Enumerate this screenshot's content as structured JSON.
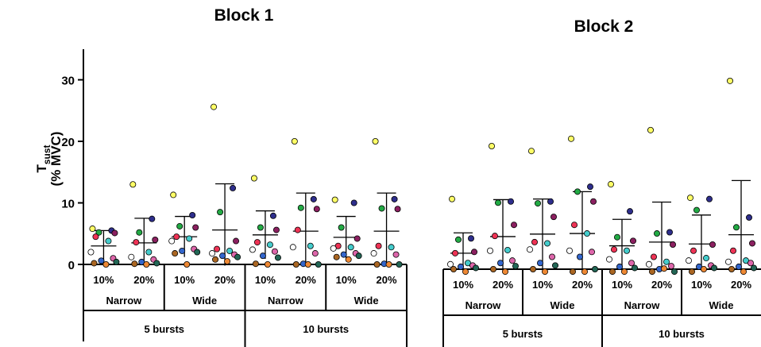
{
  "chart_data": {
    "type": "scatter",
    "ylabel": "T",
    "ylabel_sub": "sust",
    "ylabel_unit": "(% MVC)",
    "ylim": [
      0,
      35
    ],
    "yticks": [
      0,
      10,
      20,
      30
    ],
    "xlabels": {
      "level1": [
        "10%",
        "20%",
        "10%",
        "20%",
        "10%",
        "20%",
        "10%",
        "20%"
      ],
      "level2": [
        "Narrow",
        "Wide",
        "Narrow",
        "Wide"
      ],
      "level3": [
        "5 bursts",
        "10 bursts"
      ]
    },
    "colors": [
      "#ffff66",
      "#2e2e8c",
      "#22aa44",
      "#8b2060",
      "#ee3355",
      "#44cccc",
      "#ffffff",
      "#dd66aa",
      "#3366cc",
      "#226655",
      "#aa6622",
      "#ee8833"
    ],
    "panels": [
      {
        "title": "Block 1",
        "groups": [
          {
            "mean": 3.0,
            "sd": 2.5,
            "values": [
              5.8,
              5.5,
              5.2,
              5.1,
              4.5,
              3.8,
              2.0,
              1.0,
              0.6,
              0.4,
              0.2,
              0.0
            ]
          },
          {
            "mean": 3.5,
            "sd": 4.0,
            "values": [
              13.0,
              7.4,
              5.2,
              4.0,
              3.6,
              2.0,
              1.2,
              0.8,
              0.4,
              0.2,
              0.1,
              0.0
            ]
          },
          {
            "mean": 4.5,
            "sd": 3.3,
            "values": [
              11.3,
              8.0,
              6.2,
              6.0,
              4.5,
              4.2,
              3.8,
              2.5,
              2.2,
              2.0,
              1.8,
              0.0
            ]
          },
          {
            "mean": 5.6,
            "sd": 7.5,
            "values": [
              25.6,
              12.4,
              8.5,
              3.8,
              2.5,
              2.2,
              1.8,
              1.6,
              1.4,
              1.2,
              0.8,
              0.5
            ]
          },
          {
            "mean": 4.8,
            "sd": 3.9,
            "values": [
              14.0,
              7.9,
              6.0,
              5.6,
              3.6,
              3.2,
              2.4,
              2.1,
              1.4,
              1.1,
              0.1,
              0.0
            ]
          },
          {
            "mean": 5.4,
            "sd": 6.2,
            "values": [
              20.0,
              10.6,
              9.2,
              9.0,
              5.6,
              3.0,
              2.8,
              1.8,
              0.1,
              0.0,
              0.0,
              0.0
            ]
          },
          {
            "mean": 4.4,
            "sd": 3.4,
            "values": [
              10.5,
              10.0,
              6.0,
              4.2,
              3.0,
              2.8,
              2.6,
              1.8,
              1.6,
              1.4,
              1.2,
              0.8
            ]
          },
          {
            "mean": 5.4,
            "sd": 6.2,
            "values": [
              20.0,
              10.6,
              9.1,
              9.0,
              3.0,
              2.8,
              1.8,
              1.6,
              0.1,
              0.0,
              0.0,
              0.0
            ]
          }
        ]
      },
      {
        "title": "Block 2",
        "groups": [
          {
            "mean": 2.6,
            "sd": 3.3,
            "values": [
              11.4,
              5.0,
              4.8,
              2.8,
              2.6,
              1.0,
              0.8,
              0.6,
              0.4,
              0.2,
              0.0,
              -0.4
            ]
          },
          {
            "mean": 5.3,
            "sd": 6.0,
            "values": [
              20.0,
              11.0,
              10.8,
              7.2,
              5.4,
              3.1,
              3.0,
              1.4,
              1.0,
              0.5,
              0.0,
              -0.4
            ]
          },
          {
            "mean": 5.7,
            "sd": 5.7,
            "values": [
              19.2,
              11.0,
              10.7,
              8.5,
              4.4,
              4.2,
              3.2,
              2.0,
              1.0,
              0.6,
              0.0,
              -0.4
            ]
          },
          {
            "mean": 5.8,
            "sd": 6.8,
            "values": [
              21.2,
              13.4,
              12.6,
              11.0,
              7.2,
              5.8,
              3.0,
              2.8,
              2.0,
              0.0,
              -0.4,
              -0.4
            ]
          },
          {
            "mean": 3.8,
            "sd": 4.3,
            "values": [
              13.8,
              9.4,
              5.2,
              4.6,
              3.2,
              3.0,
              1.6,
              1.0,
              0.4,
              0.2,
              -0.4,
              -0.4
            ]
          },
          {
            "mean": 4.4,
            "sd": 6.5,
            "values": [
              22.6,
              6.0,
              5.8,
              4.0,
              2.0,
              1.2,
              0.8,
              0.5,
              0.0,
              -0.4,
              -0.4,
              0.1
            ]
          },
          {
            "mean": 4.1,
            "sd": 4.7,
            "values": [
              11.6,
              11.4,
              9.6,
              4.0,
              3.0,
              1.8,
              1.4,
              0.6,
              0.4,
              0.2,
              -0.4,
              0.0
            ]
          },
          {
            "mean": 5.6,
            "sd": 8.8,
            "values": [
              30.6,
              8.4,
              6.8,
              4.2,
              3.0,
              1.4,
              1.2,
              1.0,
              0.4,
              0.2,
              0.0,
              -0.4
            ]
          }
        ]
      }
    ]
  }
}
